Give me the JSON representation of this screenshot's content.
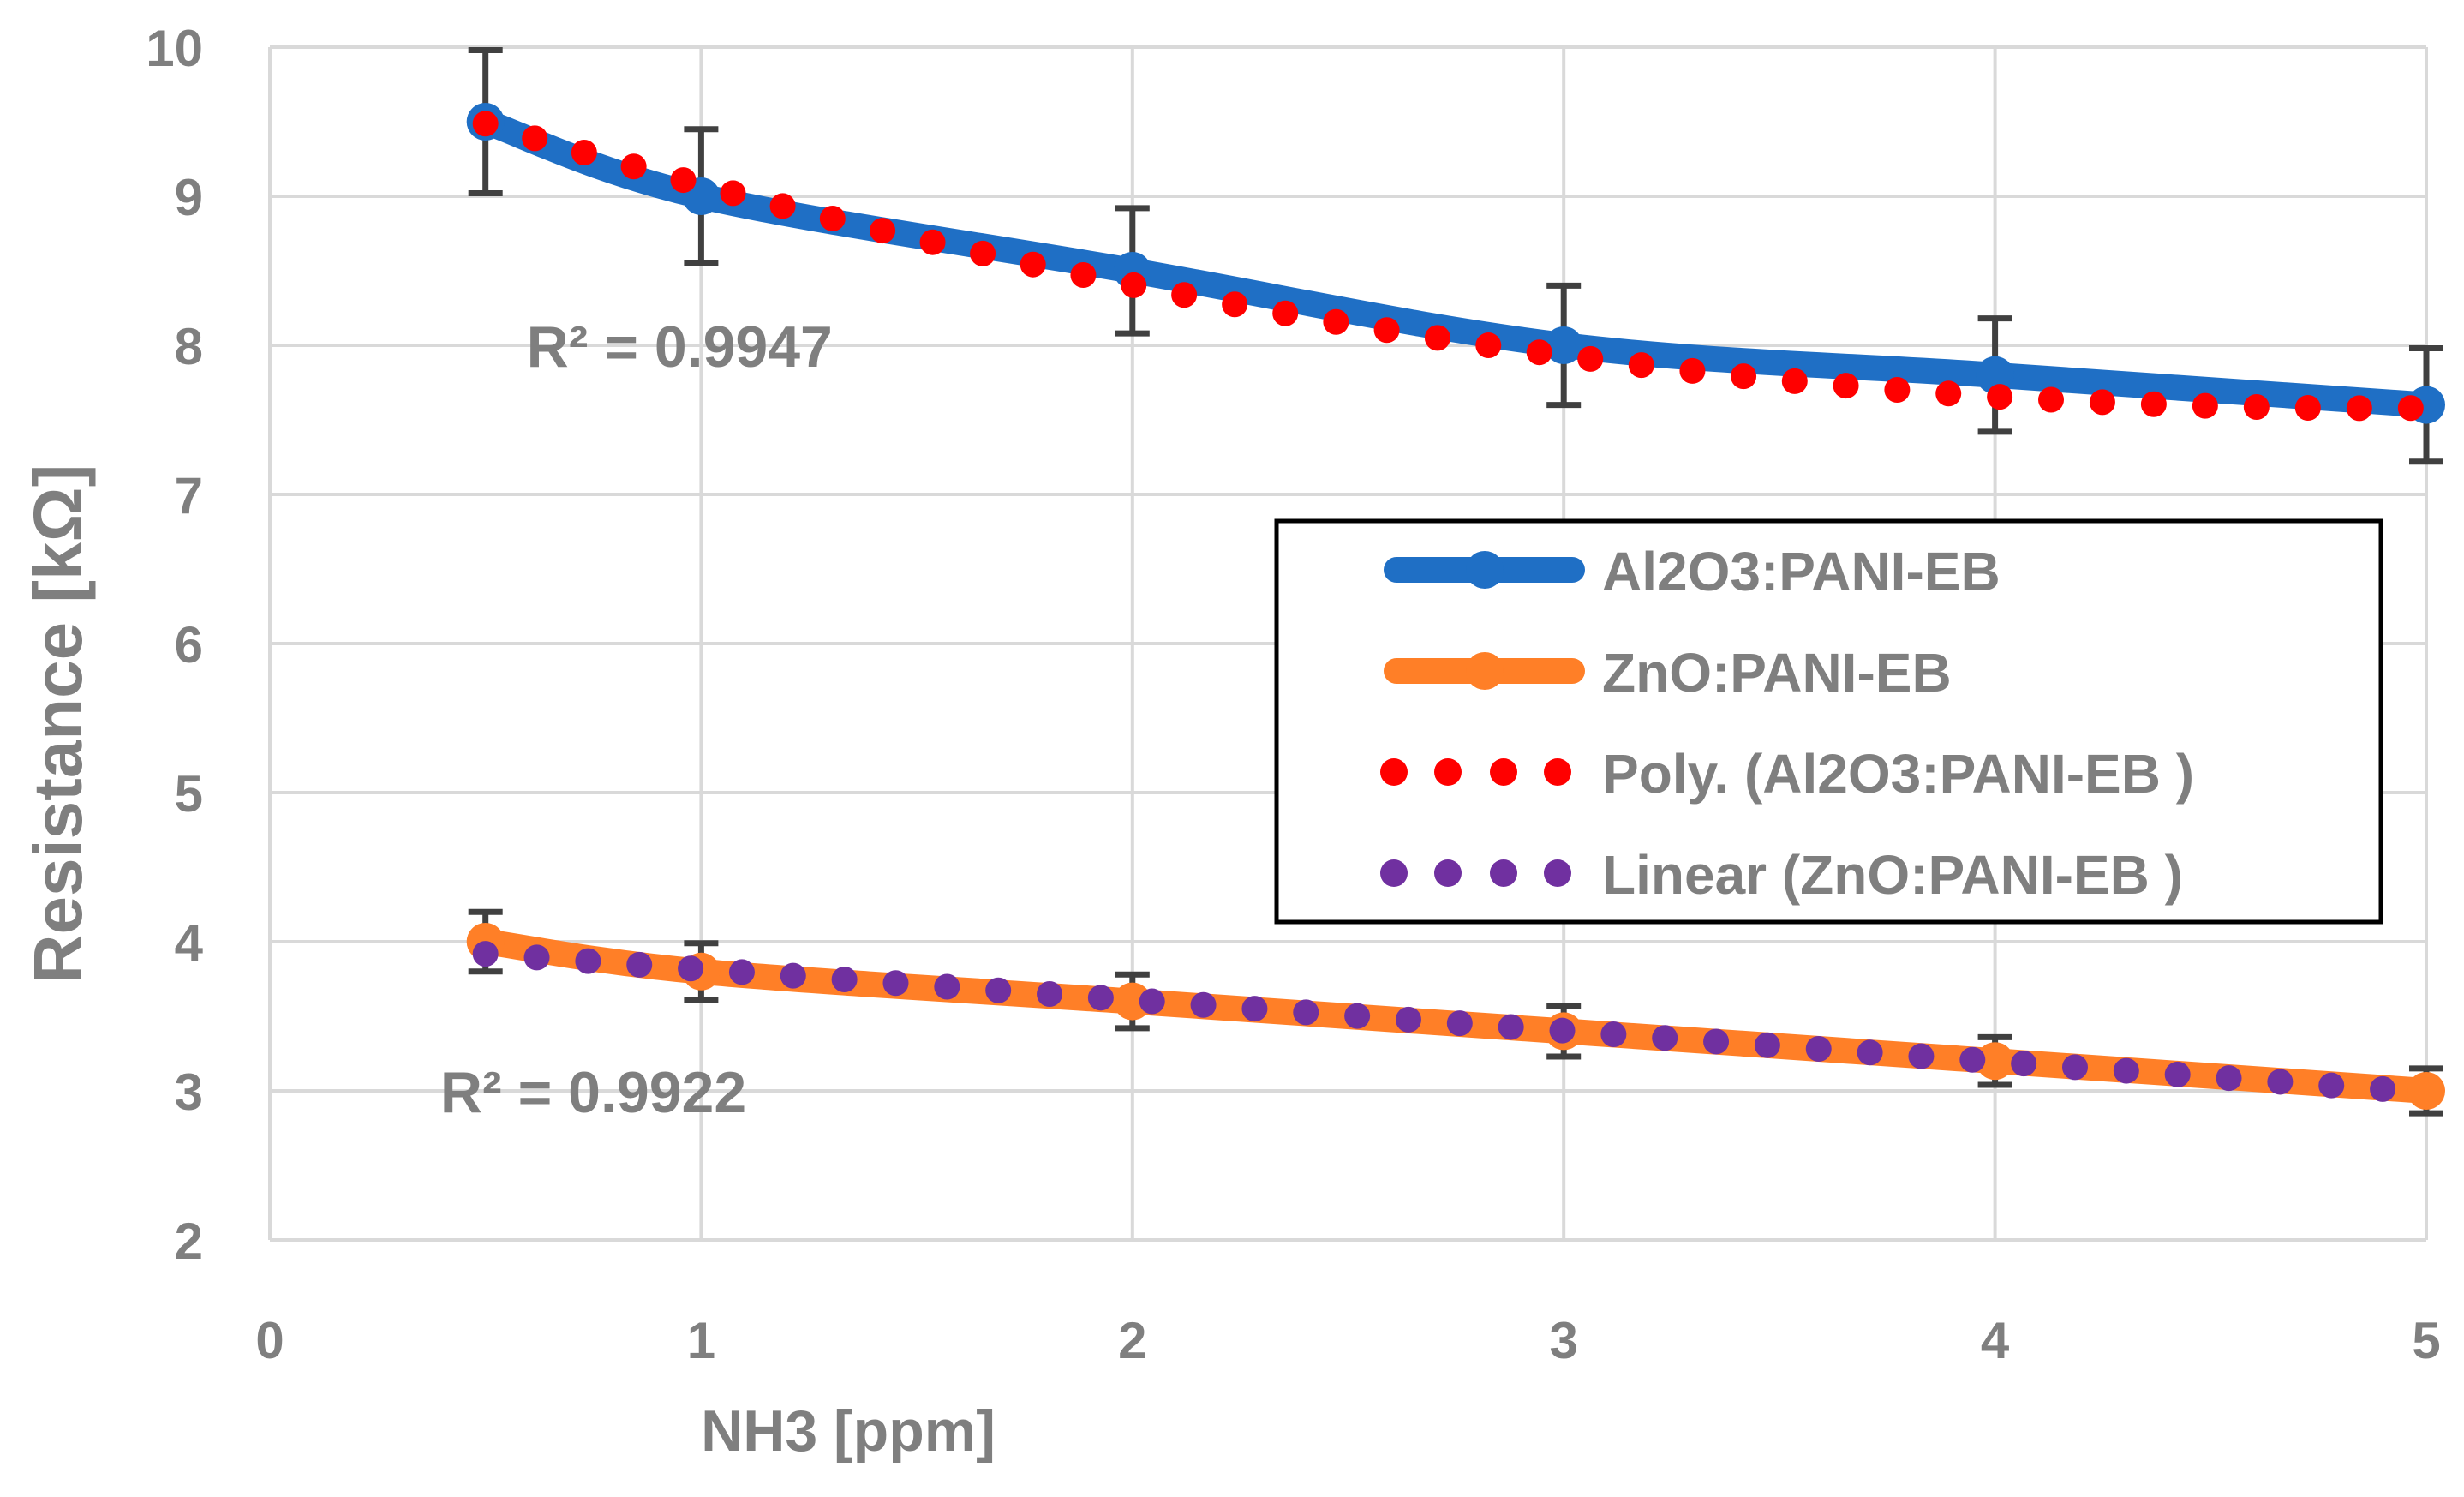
{
  "chart_data": {
    "type": "line",
    "title": "",
    "xlabel": "NH3 [ppm]",
    "ylabel": "Resistance [kΩ]",
    "xlim": [
      0,
      5
    ],
    "ylim": [
      2,
      10
    ],
    "xticks": [
      0,
      1,
      2,
      3,
      4,
      5
    ],
    "yticks": [
      2,
      3,
      4,
      5,
      6,
      7,
      8,
      9,
      10
    ],
    "grid": true,
    "legend_position": "right",
    "series": [
      {
        "name": "Al2O3:PANI-EB",
        "kind": "data",
        "color": "#1F6FC5",
        "x": [
          0.5,
          1,
          2,
          3,
          4,
          5
        ],
        "values": [
          9.5,
          9.0,
          8.5,
          8.0,
          7.8,
          7.6
        ],
        "error": [
          0.48,
          0.45,
          0.42,
          0.4,
          0.38,
          0.38
        ]
      },
      {
        "name": "ZnO:PANI-EB",
        "kind": "data",
        "color": "#FF7F27",
        "x": [
          0.5,
          1,
          2,
          3,
          4,
          5
        ],
        "values": [
          4.0,
          3.8,
          3.6,
          3.4,
          3.2,
          3.0
        ],
        "error": [
          0.2,
          0.19,
          0.18,
          0.17,
          0.16,
          0.15
        ]
      },
      {
        "name": "Poly. (Al2O3:PANI-EB  )",
        "kind": "trend",
        "color": "#FF0000",
        "fit": "poly2",
        "coefficients": [
          9.947,
          -0.9695,
          0.0992
        ]
      },
      {
        "name": "Linear (ZnO:PANI-EB )",
        "kind": "trend",
        "color": "#7030A0",
        "fit": "linear",
        "coefficients": [
          4.022,
          -0.2062
        ]
      }
    ],
    "annotations": [
      {
        "name": "r2-al2o3",
        "text": "R² = 0.9947",
        "near_series": "Al2O3:PANI-EB",
        "x": 0.95,
        "y": 8.0
      },
      {
        "name": "r2-zno",
        "text": "R² = 0.9922",
        "near_series": "ZnO:PANI-EB",
        "x": 0.75,
        "y": 3.0
      }
    ]
  }
}
